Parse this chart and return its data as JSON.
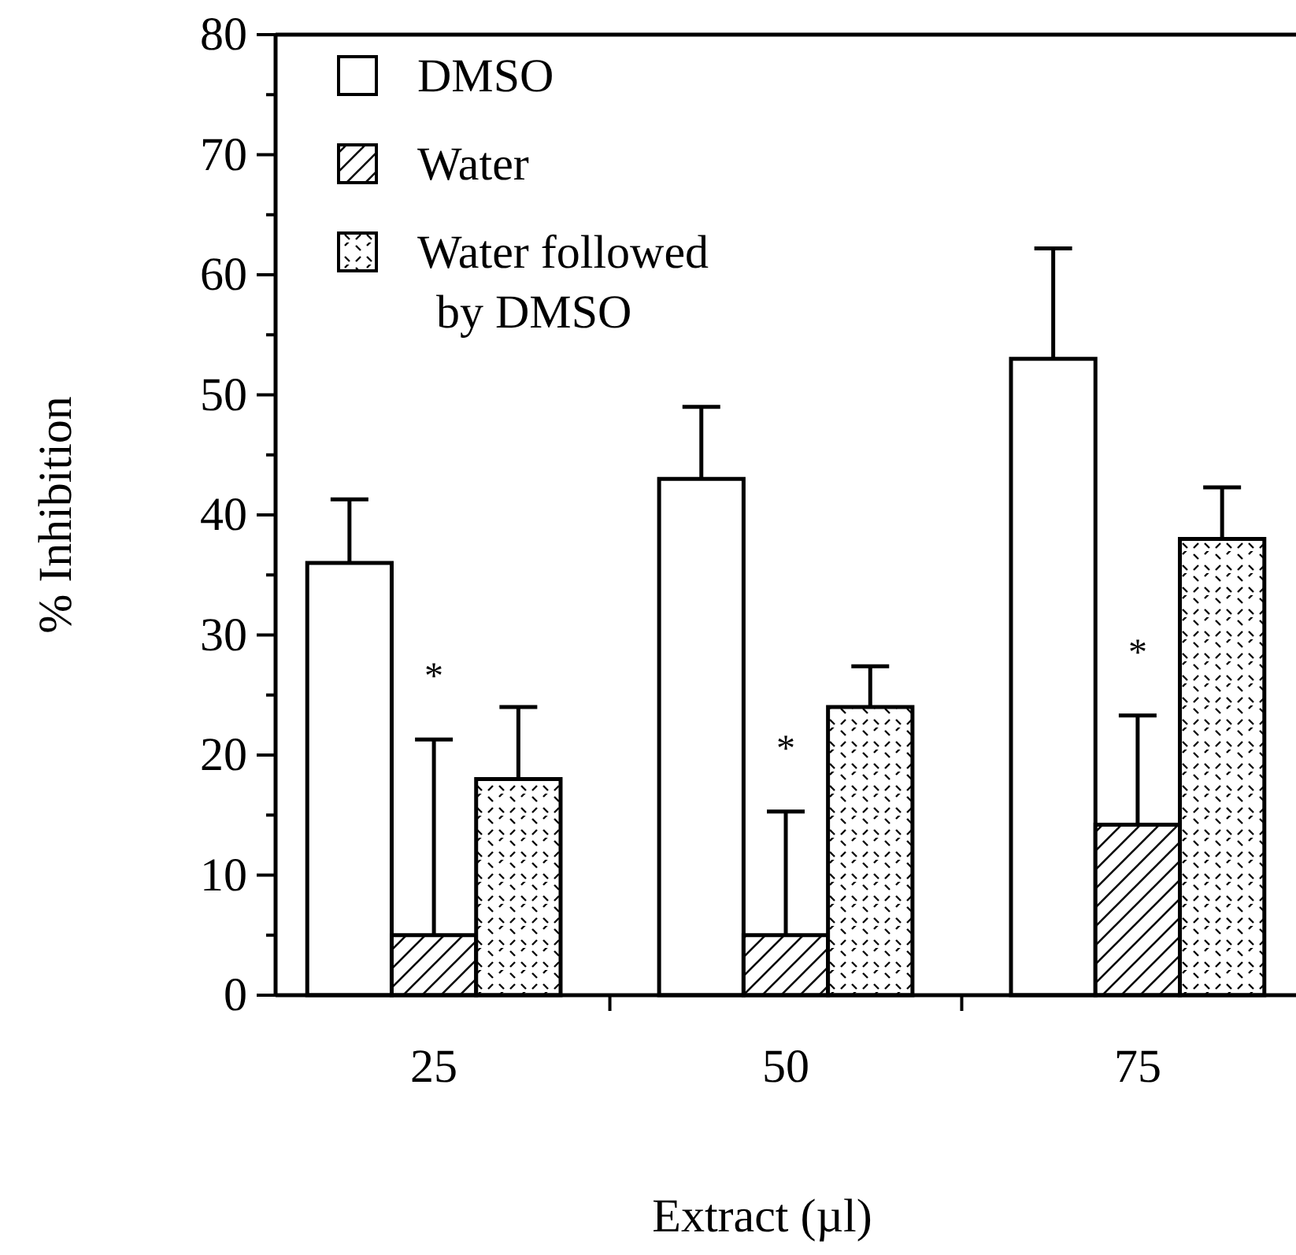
{
  "chart_data": {
    "type": "bar",
    "xlabel": "Extract (µl)",
    "ylabel": "% Inhibition",
    "categories": [
      "25",
      "50",
      "75"
    ],
    "series": [
      {
        "name": "DMSO",
        "color": "#ffffff",
        "values": [
          36,
          43,
          53
        ],
        "errors": [
          [
            36,
            41.3
          ],
          [
            43,
            49
          ],
          [
            53,
            62.2
          ]
        ]
      },
      {
        "name": "Water",
        "color": "#000000",
        "values": [
          5,
          5,
          14.2
        ],
        "errors": [
          [
            5,
            21.3
          ],
          [
            5,
            15.3
          ],
          [
            14.2,
            23.3
          ]
        ]
      },
      {
        "name": "Water followed\nby DMSO",
        "color": "#000000",
        "values": [
          18,
          24,
          38
        ],
        "errors": [
          [
            18,
            24
          ],
          [
            24,
            27.4
          ],
          [
            38,
            42.3
          ]
        ]
      }
    ],
    "ylim": [
      0,
      80
    ],
    "yticks": [
      0,
      {
        "value": 5,
        "label": null
      },
      10,
      {
        "value": 15,
        "label": null
      },
      20,
      {
        "value": 25,
        "label": null
      },
      30,
      {
        "value": 35,
        "label": null
      },
      40,
      {
        "value": 45,
        "label": null
      },
      50,
      {
        "value": 55,
        "label": null
      },
      60,
      {
        "value": 65,
        "label": null
      },
      70,
      {
        "value": 75,
        "label": null
      },
      80
    ],
    "annotations": [
      {
        "text": "*",
        "x": "25",
        "y": 21.3
      },
      {
        "text": "*",
        "x": "50",
        "y": 15.3
      },
      {
        "text": "*",
        "x": "75",
        "y": 23.3
      }
    ],
    "legend": "top left",
    "grid": false
  }
}
